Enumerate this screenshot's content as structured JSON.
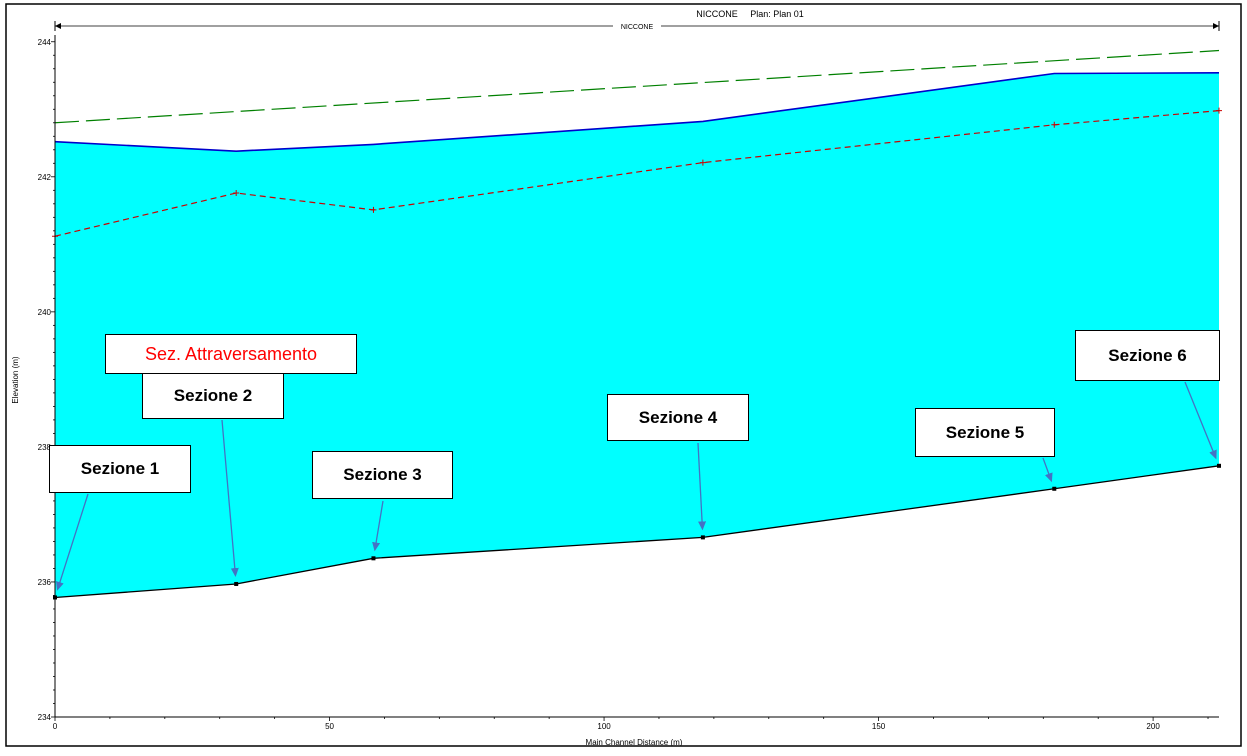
{
  "chart_data": {
    "type": "area",
    "title": "NICCONE     Plan: Plan 01",
    "reach_label": "NICCONE",
    "xlabel": "Main Channel Distance (m)",
    "ylabel": "Elevation (m)",
    "xlim": [
      0,
      212
    ],
    "ylim": [
      234,
      244.1
    ],
    "x_ticks": [
      0,
      50,
      100,
      150,
      200
    ],
    "y_ticks": [
      234,
      236,
      238,
      240,
      242,
      244
    ],
    "grid": false,
    "series": [
      {
        "key": "ground",
        "style": "solid-black-with-markers",
        "x": [
          0,
          33,
          58,
          118,
          182,
          212
        ],
        "y": [
          235.77,
          235.97,
          236.35,
          236.66,
          237.38,
          237.72
        ]
      },
      {
        "key": "water_surface",
        "style": "solid-blue",
        "x": [
          0,
          33,
          58,
          118,
          182,
          212
        ],
        "y": [
          242.52,
          242.38,
          242.48,
          242.82,
          243.53,
          243.54
        ]
      },
      {
        "key": "critical_depth",
        "style": "dashed-red",
        "x": [
          0,
          33,
          58,
          118,
          182,
          212
        ],
        "y": [
          241.12,
          241.76,
          241.51,
          242.21,
          242.77,
          242.98
        ]
      },
      {
        "key": "energy_grade",
        "style": "long-dash-green",
        "x": [
          0,
          212
        ],
        "y": [
          242.8,
          243.87
        ]
      }
    ],
    "callouts": [
      {
        "key": "sec1",
        "label": "Sezione 1",
        "target": [
          0,
          235.77
        ]
      },
      {
        "key": "sec2",
        "label": "Sezione 2",
        "target": [
          33,
          235.97
        ]
      },
      {
        "key": "attr",
        "label": "Sez. Attraversamento",
        "target": null
      },
      {
        "key": "sec3",
        "label": "Sezione 3",
        "target": [
          58,
          236.35
        ]
      },
      {
        "key": "sec4",
        "label": "Sezione 4",
        "target": [
          118,
          236.66
        ]
      },
      {
        "key": "sec5",
        "label": "Sezione 5",
        "target": [
          182,
          237.38
        ]
      },
      {
        "key": "sec6",
        "label": "Sezione 6",
        "target": [
          212,
          237.72
        ]
      }
    ],
    "colors": {
      "water_fill": "#00ffff",
      "water_surface": "#0000cc",
      "critical_depth": "#cc0000",
      "energy_grade": "#008000",
      "ground": "#000000",
      "arrow": "#4472c4",
      "callout_highlight": "#ff0000"
    }
  }
}
